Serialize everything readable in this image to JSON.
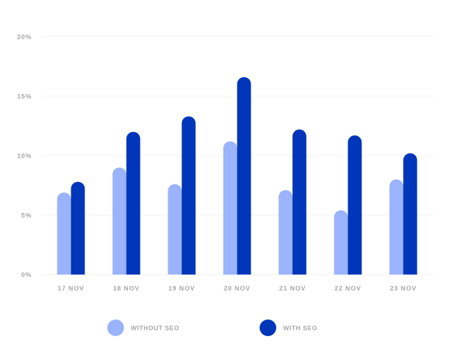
{
  "chart_data": {
    "type": "bar",
    "categories": [
      "17 NOV",
      "18 NOV",
      "19 NOV",
      "20 NOV",
      "21 NOV",
      "22 NOV",
      "23 NOV"
    ],
    "series": [
      {
        "name": "WITHOUT SEO",
        "color": "#9bb3fb",
        "values": [
          6.9,
          9.0,
          7.6,
          11.2,
          7.1,
          5.4,
          8.0
        ]
      },
      {
        "name": "WITH SEO",
        "color": "#0036b9",
        "values": [
          7.8,
          12.0,
          13.3,
          16.6,
          12.2,
          11.7,
          10.2
        ]
      }
    ],
    "yticks": [
      "0%",
      "5%",
      "10%",
      "15%",
      "20%"
    ],
    "ylim": [
      0,
      20
    ],
    "grid": true,
    "legend_position": "bottom"
  }
}
